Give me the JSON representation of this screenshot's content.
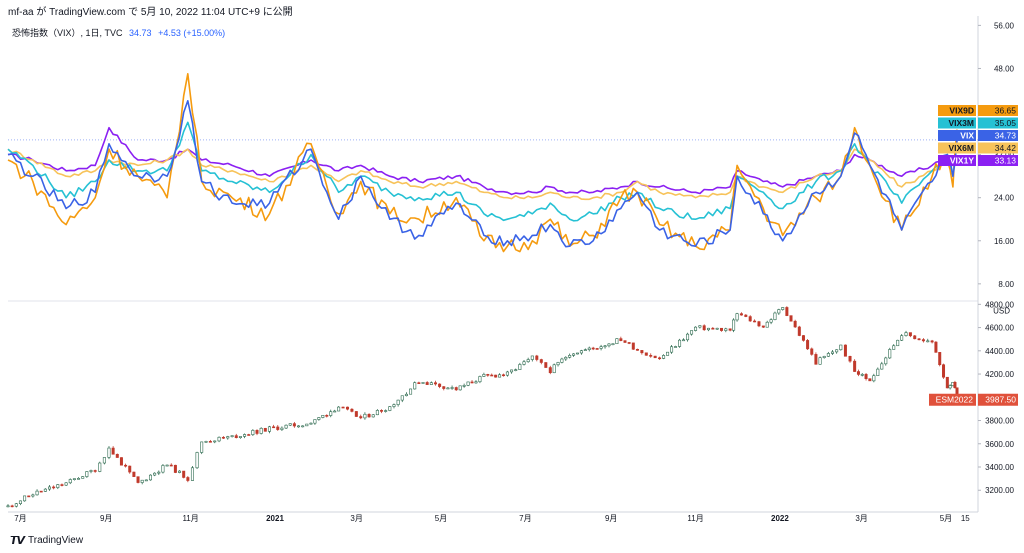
{
  "header": {
    "author": "mf-aa",
    "particle": "が",
    "site": "TradingView.com",
    "particle2": "で",
    "datetime": "5月 10, 2022 11:04 UTC+9",
    "published": "に公開"
  },
  "legend": {
    "symbol": "恐怖指数（VIX）, 1日, TVC",
    "last": "34.73",
    "change": "+4.53 (+15.00%)"
  },
  "footer": {
    "brand": "TradingView"
  },
  "colors": {
    "vix": "#3a63e6",
    "vix9d": "#f59b0f",
    "vix3m": "#26c1d4",
    "vix6m": "#f7c35a",
    "vix1y": "#8b20f2",
    "esm": "#e0513b",
    "candle_up": "#2d6a4f",
    "candle_down": "#c0392b"
  },
  "chart_data": [
    {
      "type": "line",
      "panel": "top",
      "yaxis_ticks": [
        "56.00",
        "48.00",
        "40.00",
        "32.00",
        "24.00",
        "16.00",
        "8.00"
      ],
      "ylim": [
        5,
        57
      ],
      "x": [
        "2020-06-22",
        "2020-07-10",
        "2020-08-03",
        "2020-08-24",
        "2020-09-03",
        "2020-09-24",
        "2020-10-15",
        "2020-10-30",
        "2020-11-09",
        "2020-12-01",
        "2020-12-28",
        "2021-01-27",
        "2021-02-16",
        "2021-03-04",
        "2021-03-25",
        "2021-04-15",
        "2021-05-12",
        "2021-06-01",
        "2021-06-18",
        "2021-07-06",
        "2021-07-19",
        "2021-08-02",
        "2021-08-19",
        "2021-09-08",
        "2021-09-20",
        "2021-10-06",
        "2021-11-01",
        "2021-11-26",
        "2021-12-01",
        "2021-12-20",
        "2022-01-03",
        "2022-01-27",
        "2022-02-14",
        "2022-02-24",
        "2022-03-07",
        "2022-03-30",
        "2022-04-21",
        "2022-05-02",
        "2022-05-06",
        "2022-05-09"
      ],
      "series": [
        {
          "name": "VIX9D",
          "last": "36.65",
          "values": [
            31,
            27,
            19,
            24,
            33,
            28,
            24,
            47,
            27,
            24,
            21,
            34,
            21,
            27,
            21,
            20,
            24,
            16,
            15,
            16,
            20,
            15,
            17,
            24,
            25,
            19,
            15,
            18,
            30,
            22,
            17,
            24,
            28,
            37,
            30,
            18,
            28,
            31,
            26,
            36.65
          ]
        },
        {
          "name": "VIX3M",
          "last": "35.05",
          "values": [
            33,
            30,
            24,
            27,
            31,
            29,
            29,
            38,
            29,
            27,
            25,
            32,
            25,
            28,
            25,
            24,
            25,
            21,
            20,
            21,
            23,
            20,
            21,
            24,
            25,
            22,
            20,
            22,
            28,
            25,
            22,
            27,
            29,
            34,
            30,
            23,
            29,
            32,
            28,
            35.05
          ]
        },
        {
          "name": "VIX",
          "last": "34.73",
          "values": [
            32,
            28,
            22,
            25,
            34,
            28,
            28,
            42,
            27,
            23,
            23,
            33,
            20,
            28,
            20,
            17,
            23,
            17,
            16,
            17,
            19,
            15,
            16,
            22,
            25,
            18,
            15,
            18,
            28,
            21,
            16,
            25,
            28,
            36,
            30,
            18,
            27,
            32,
            28,
            34.73
          ]
        },
        {
          "name": "VIX6M",
          "last": "34.42",
          "values": [
            33,
            31,
            28,
            29,
            31,
            30,
            31,
            33,
            30,
            29,
            27,
            30,
            27,
            29,
            27,
            26,
            27,
            25,
            24,
            24,
            25,
            24,
            24,
            25,
            27,
            25,
            24,
            25,
            28,
            26,
            25,
            28,
            29,
            33,
            31,
            26,
            29,
            31,
            30,
            34.42
          ]
        },
        {
          "name": "VIX1Y",
          "last": "33.13",
          "values": [
            32,
            31,
            29,
            30,
            37,
            31,
            31,
            33,
            31,
            30,
            28,
            31,
            29,
            30,
            28,
            27,
            28,
            26,
            25,
            25,
            26,
            25,
            25,
            26,
            27,
            26,
            25,
            26,
            29,
            27,
            26,
            28,
            29,
            32,
            31,
            28,
            30,
            32,
            30,
            33.13
          ]
        }
      ]
    },
    {
      "type": "line",
      "panel": "bottom",
      "yaxis_unit": "USD",
      "yaxis_ticks": [
        "4800.00",
        "4600.00",
        "4400.00",
        "4200.00",
        "4000.00",
        "3800.00",
        "3600.00",
        "3400.00",
        "3200.00"
      ],
      "ylim": [
        3030,
        4820
      ],
      "x": [
        "2020-06-22",
        "2020-07-10",
        "2020-08-03",
        "2020-08-24",
        "2020-09-03",
        "2020-09-24",
        "2020-10-15",
        "2020-10-30",
        "2020-11-09",
        "2020-12-01",
        "2020-12-28",
        "2021-01-27",
        "2021-02-16",
        "2021-03-04",
        "2021-03-25",
        "2021-04-15",
        "2021-05-12",
        "2021-06-01",
        "2021-06-18",
        "2021-07-06",
        "2021-07-19",
        "2021-08-02",
        "2021-08-19",
        "2021-09-08",
        "2021-09-20",
        "2021-10-06",
        "2021-11-01",
        "2021-11-26",
        "2021-12-01",
        "2021-12-20",
        "2022-01-03",
        "2022-01-27",
        "2022-02-14",
        "2022-02-24",
        "2022-03-07",
        "2022-03-30",
        "2022-04-21",
        "2022-05-02",
        "2022-05-06",
        "2022-05-09"
      ],
      "series": [
        {
          "name": "ESM2022",
          "last": "3987.50",
          "values": [
            3060,
            3170,
            3260,
            3380,
            3560,
            3260,
            3420,
            3300,
            3620,
            3660,
            3730,
            3780,
            3920,
            3820,
            3920,
            4140,
            4070,
            4180,
            4200,
            4340,
            4230,
            4380,
            4420,
            4500,
            4410,
            4330,
            4600,
            4580,
            4720,
            4610,
            4780,
            4300,
            4440,
            4220,
            4150,
            4550,
            4470,
            4090,
            4140,
            3987.5
          ]
        }
      ]
    }
  ],
  "xaxis": {
    "labels": [
      "7月",
      "9月",
      "11月",
      "2021",
      "3月",
      "5月",
      "7月",
      "9月",
      "11月",
      "2022",
      "3月",
      "5月",
      "15"
    ],
    "dates": [
      "2020-07-01",
      "2020-09-01",
      "2020-11-01",
      "2021-01-01",
      "2021-03-01",
      "2021-05-01",
      "2021-07-01",
      "2021-09-01",
      "2021-11-01",
      "2022-01-01",
      "2022-03-01",
      "2022-05-01",
      "2022-05-15"
    ],
    "bold": [
      false,
      false,
      false,
      true,
      false,
      false,
      false,
      false,
      false,
      true,
      false,
      false,
      false
    ]
  }
}
